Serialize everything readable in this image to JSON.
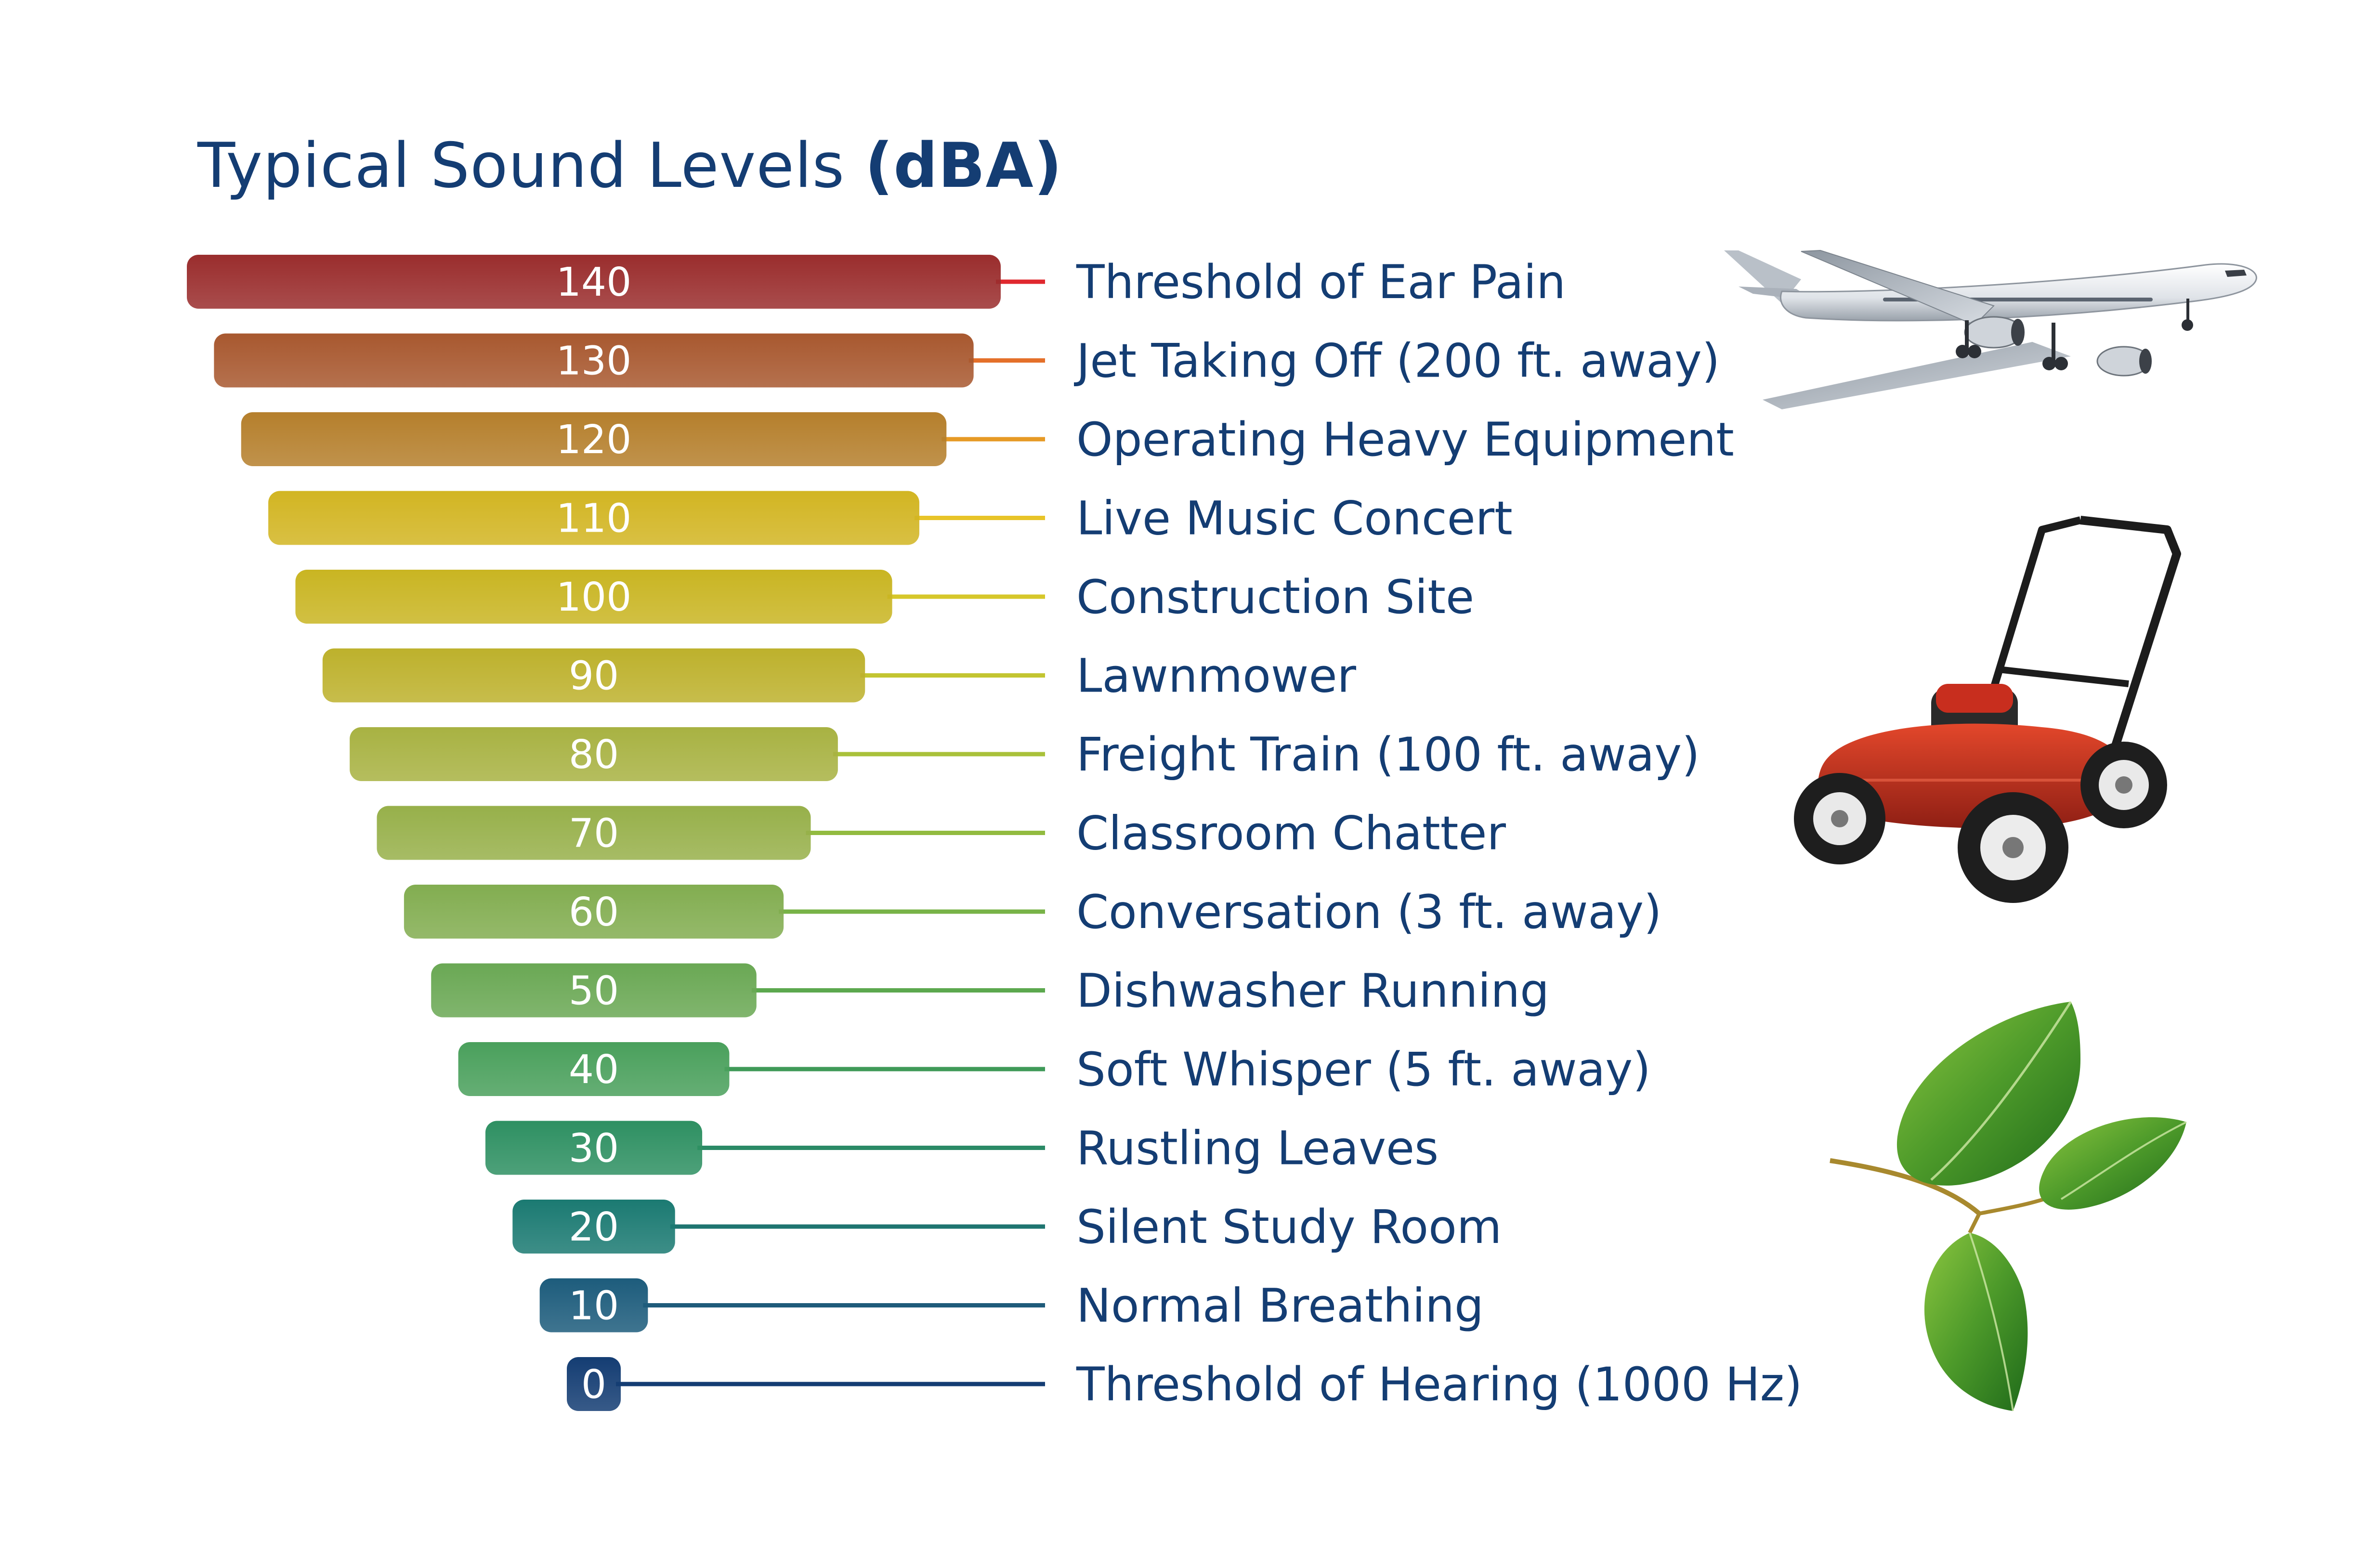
{
  "title": {
    "main": "Typical Sound Levels ",
    "unit": "(dBA)"
  },
  "chart_data": {
    "type": "bar",
    "title": "Typical Sound Levels (dBA)",
    "categories": [
      "Threshold of Ear Pain",
      "Jet Taking Off (200 ft. away)",
      "Operating Heavy Equipment",
      "Live Music Concert",
      "Construction Site",
      "Lawnmower",
      "Freight Train (100 ft. away)",
      "Classroom Chatter",
      "Conversation (3 ft. away)",
      "Dishwasher Running",
      "Soft Whisper (5 ft. away)",
      "Rustling Leaves",
      "Silent Study Room",
      "Normal Breathing",
      "Threshold of Hearing (1000 Hz)"
    ],
    "values": [
      140,
      130,
      120,
      110,
      100,
      90,
      80,
      70,
      60,
      50,
      40,
      30,
      20,
      10,
      0
    ],
    "colors": [
      "#9a2d2d",
      "#a8582f",
      "#b57f2c",
      "#d2b522",
      "#c9b522",
      "#bdb12c",
      "#a8b242",
      "#97b04a",
      "#82ad50",
      "#6aa854",
      "#4aa05c",
      "#2e9062",
      "#1b7a72",
      "#1d5c7c",
      "#143d73"
    ],
    "line_colors": [
      "#e0282e",
      "#e4702a",
      "#e69a25",
      "#e8c428",
      "#d6c72a",
      "#c3c531",
      "#a9c13a",
      "#92bb40",
      "#78b347",
      "#5ca84e",
      "#3f9a58",
      "#2b8a66",
      "#1f7570",
      "#1f5b7a",
      "#143d73"
    ],
    "xlim": [
      0,
      140
    ],
    "legend": "none",
    "grid": false
  },
  "illustrations": [
    {
      "name": "airplane-illustration"
    },
    {
      "name": "lawnmower-illustration"
    },
    {
      "name": "leaves-illustration"
    }
  ]
}
